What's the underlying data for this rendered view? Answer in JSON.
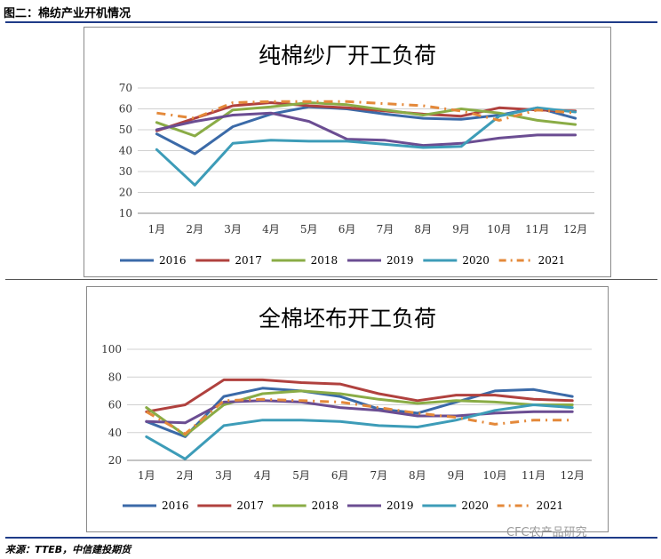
{
  "figure_title": "图二：棉纺产业开机情况",
  "source": "来源：TTEB，中信建投期货",
  "watermark": "CFC农产品研究",
  "colors": {
    "2016": "#3b6aa8",
    "2017": "#b0413e",
    "2018": "#8aac46",
    "2019": "#6b4d92",
    "2020": "#3d9cb8",
    "2021": "#e4893a"
  },
  "chart_data": [
    {
      "type": "line",
      "title": "纯棉纱厂开工负荷",
      "categories": [
        "1月",
        "2月",
        "3月",
        "4月",
        "5月",
        "6月",
        "7月",
        "8月",
        "9月",
        "10月",
        "11月",
        "12月"
      ],
      "ylim": [
        10,
        70
      ],
      "yticks": [
        10,
        20,
        30,
        40,
        50,
        60,
        70
      ],
      "legend": "bottom",
      "grid": true,
      "series": [
        {
          "name": "2016",
          "values": [
            48,
            38.5,
            51.5,
            57.5,
            61,
            60,
            57.5,
            55.5,
            55,
            57,
            60.5,
            55.5
          ]
        },
        {
          "name": "2017",
          "values": [
            49.5,
            55.5,
            61.5,
            63,
            61.5,
            60.5,
            59,
            57.5,
            56.5,
            60.5,
            59.5,
            59
          ]
        },
        {
          "name": "2018",
          "values": [
            53.5,
            47,
            59.5,
            61,
            63,
            62,
            59.5,
            57,
            60,
            58,
            54.5,
            52.5
          ]
        },
        {
          "name": "2019",
          "values": [
            50,
            54,
            57,
            58,
            54,
            45.5,
            45,
            42.5,
            43.5,
            46,
            47.5,
            47.5
          ]
        },
        {
          "name": "2020",
          "values": [
            40.5,
            23.5,
            43.5,
            45,
            44.5,
            44.5,
            43,
            41.5,
            42,
            56.5,
            60.5,
            58.5
          ]
        },
        {
          "name": "2021",
          "values": [
            58,
            55.5,
            63,
            63.5,
            63.5,
            63.5,
            62.5,
            61.5,
            59,
            54.5,
            59.5,
            58
          ]
        }
      ]
    },
    {
      "type": "line",
      "title": "全棉坯布开工负荷",
      "categories": [
        "1月",
        "2月",
        "3月",
        "4月",
        "5月",
        "6月",
        "7月",
        "8月",
        "9月",
        "10月",
        "11月",
        "12月"
      ],
      "ylim": [
        20,
        100
      ],
      "yticks": [
        20,
        40,
        60,
        80,
        100
      ],
      "legend": "bottom",
      "grid": true,
      "series": [
        {
          "name": "2016",
          "values": [
            48,
            37,
            66,
            72,
            70,
            66,
            57,
            54,
            62,
            70,
            71,
            66
          ]
        },
        {
          "name": "2017",
          "values": [
            55,
            60,
            78,
            78,
            76,
            75,
            68,
            63,
            67,
            67,
            64,
            63
          ]
        },
        {
          "name": "2018",
          "values": [
            58,
            38,
            60,
            68,
            70,
            68,
            64,
            61,
            63,
            62,
            60,
            60
          ]
        },
        {
          "name": "2019",
          "values": [
            48,
            47,
            62,
            63,
            62,
            58,
            56,
            52,
            52,
            54,
            55,
            55
          ]
        },
        {
          "name": "2020",
          "values": [
            37,
            21,
            45,
            49,
            49,
            48,
            45,
            44,
            49,
            56,
            60,
            58
          ]
        },
        {
          "name": "2021",
          "values": [
            55,
            39,
            63,
            64,
            63,
            62,
            58,
            54,
            51,
            46,
            49,
            49
          ]
        }
      ]
    }
  ]
}
